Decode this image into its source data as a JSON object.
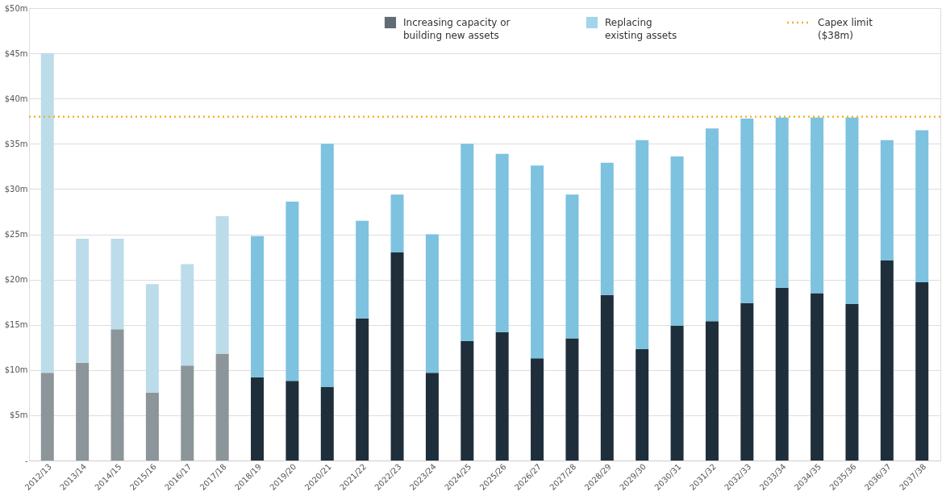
{
  "chart_data": {
    "type": "bar",
    "stacked": true,
    "categories": [
      "2012/13",
      "2013/14",
      "2014/15",
      "2015/16",
      "2016/17",
      "2017/18",
      "2018/19",
      "2019/20",
      "2020/21",
      "2021/22",
      "2022/23",
      "2023/24",
      "2024/25",
      "2025/26",
      "2026/27",
      "2027/28",
      "2028/29",
      "2029/30",
      "2030/31",
      "2031/32",
      "2032/33",
      "2033/34",
      "2034/35",
      "2035/36",
      "2036/37",
      "2037/38"
    ],
    "series": [
      {
        "name": "Increasing capacity or building new assets",
        "color": "#1f2e3b",
        "colors": [
          "#8c9599",
          "#8c9599",
          "#8c9599",
          "#8c9599",
          "#8c9599",
          "#8c9599",
          "#1f2e3b",
          "#1f2e3b",
          "#1f2e3b",
          "#1f2e3b",
          "#1f2e3b",
          "#1f2e3b",
          "#1f2e3b",
          "#1f2e3b",
          "#1f2e3b",
          "#1f2e3b",
          "#1f2e3b",
          "#1f2e3b",
          "#1f2e3b",
          "#1f2e3b",
          "#1f2e3b",
          "#1f2e3b",
          "#1f2e3b",
          "#1f2e3b",
          "#1f2e3b",
          "#1f2e3b"
        ],
        "values": [
          9.7,
          10.8,
          14.5,
          7.5,
          10.5,
          11.8,
          9.2,
          8.8,
          8.1,
          15.7,
          23,
          9.7,
          13.2,
          14.2,
          11.3,
          13.5,
          18.3,
          12.3,
          14.9,
          15.4,
          17.4,
          19.1,
          18.5,
          17.3,
          22.1,
          19.7
        ]
      },
      {
        "name": "Replacing existing assets",
        "color": "#7dc2df",
        "colors": [
          "#bcdcea",
          "#bcdcea",
          "#bcdcea",
          "#bcdcea",
          "#bcdcea",
          "#bcdcea",
          "#7dc2df",
          "#7dc2df",
          "#7dc2df",
          "#7dc2df",
          "#7dc2df",
          "#7dc2df",
          "#7dc2df",
          "#7dc2df",
          "#7dc2df",
          "#7dc2df",
          "#7dc2df",
          "#7dc2df",
          "#7dc2df",
          "#7dc2df",
          "#7dc2df",
          "#7dc2df",
          "#7dc2df",
          "#7dc2df",
          "#7dc2df",
          "#7dc2df"
        ],
        "values": [
          35.3,
          13.7,
          10,
          12,
          11.2,
          15.2,
          15.6,
          19.8,
          26.9,
          10.8,
          6.4,
          15.3,
          21.8,
          19.7,
          21.3,
          15.9,
          14.6,
          23.1,
          18.7,
          21.3,
          20.4,
          18.8,
          19.4,
          20.6,
          13.3,
          16.8
        ]
      }
    ],
    "ylim": [
      0,
      50
    ],
    "yticks": [
      {
        "value": 0,
        "label": "-"
      },
      {
        "value": 5,
        "label": "$5m"
      },
      {
        "value": 10,
        "label": "$10m"
      },
      {
        "value": 15,
        "label": "$15m"
      },
      {
        "value": 20,
        "label": "$20m"
      },
      {
        "value": 25,
        "label": "$25m"
      },
      {
        "value": 30,
        "label": "$30m"
      },
      {
        "value": 35,
        "label": "$35m"
      },
      {
        "value": 40,
        "label": "$40m"
      },
      {
        "value": 45,
        "label": "$45m"
      },
      {
        "value": 50,
        "label": "$50m"
      }
    ],
    "grid": "y",
    "legend": "top right",
    "ref_lines": [
      {
        "axis": "y",
        "value": 38,
        "label": "Capex limit ($38m)",
        "color": "#f0b429",
        "line_style": "dotted"
      }
    ]
  }
}
